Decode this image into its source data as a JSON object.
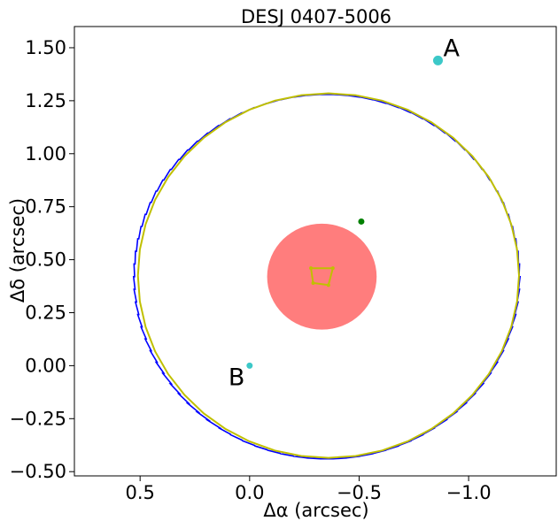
{
  "chart_data": {
    "type": "scatter",
    "title": "DESJ 0407-5006",
    "xlabel": "Δα (arcsec)",
    "ylabel": "Δδ (arcsec)",
    "xlim": [
      0.8,
      -1.4
    ],
    "ylim": [
      -0.52,
      1.6
    ],
    "xticks": [
      {
        "value": 0.5,
        "label": "0.5"
      },
      {
        "value": 0.0,
        "label": "0.0"
      },
      {
        "value": -0.5,
        "label": "−0.5"
      },
      {
        "value": -1.0,
        "label": "−1.0"
      }
    ],
    "yticks": [
      {
        "value": 1.5,
        "label": "1.50"
      },
      {
        "value": 1.25,
        "label": "1.25"
      },
      {
        "value": 1.0,
        "label": "1.00"
      },
      {
        "value": 0.75,
        "label": "0.75"
      },
      {
        "value": 0.5,
        "label": "0.50"
      },
      {
        "value": 0.25,
        "label": "0.25"
      },
      {
        "value": 0.0,
        "label": "0.00"
      },
      {
        "value": -0.25,
        "label": "−0.25"
      },
      {
        "value": -0.5,
        "label": "−0.50"
      }
    ],
    "images": [
      {
        "label": "A",
        "x": -0.86,
        "y": 1.44,
        "color": "#3cc8c8"
      },
      {
        "label": "B",
        "x": 0.0,
        "y": 0.0,
        "color": "#3cc8c8"
      }
    ],
    "lens_position": {
      "x": -0.51,
      "y": 0.68,
      "color": "#008000"
    },
    "source_region": {
      "x": -0.33,
      "y": 0.42,
      "radius": 0.25,
      "color": "#ff6666"
    },
    "critical_curve": {
      "x": -0.35,
      "y": 0.42,
      "rx": 0.88,
      "ry": 0.86,
      "color": "#0000ff"
    },
    "model_curve": {
      "x": -0.36,
      "y": 0.425,
      "rx": 0.87,
      "ry": 0.86,
      "color": "#c0c000"
    },
    "caustic": {
      "x": [
        -0.28,
        -0.38,
        -0.36,
        -0.29
      ],
      "y": [
        0.46,
        0.46,
        0.38,
        0.39
      ],
      "color": "#c0c000"
    }
  }
}
